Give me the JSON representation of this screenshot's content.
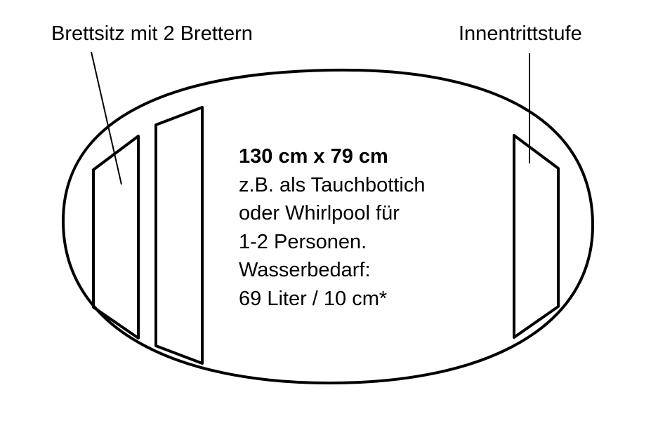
{
  "labels": {
    "left": "Brettsitz mit 2 Brettern",
    "right": "Innentrittstufe"
  },
  "info": {
    "dimensions": "130 cm x 79 cm",
    "lines": [
      "z.B. als Tauchbottich",
      "oder Whirlpool für",
      "1-2 Personen.",
      "Wasserbedarf:",
      "69 Liter / 10 cm*"
    ]
  }
}
